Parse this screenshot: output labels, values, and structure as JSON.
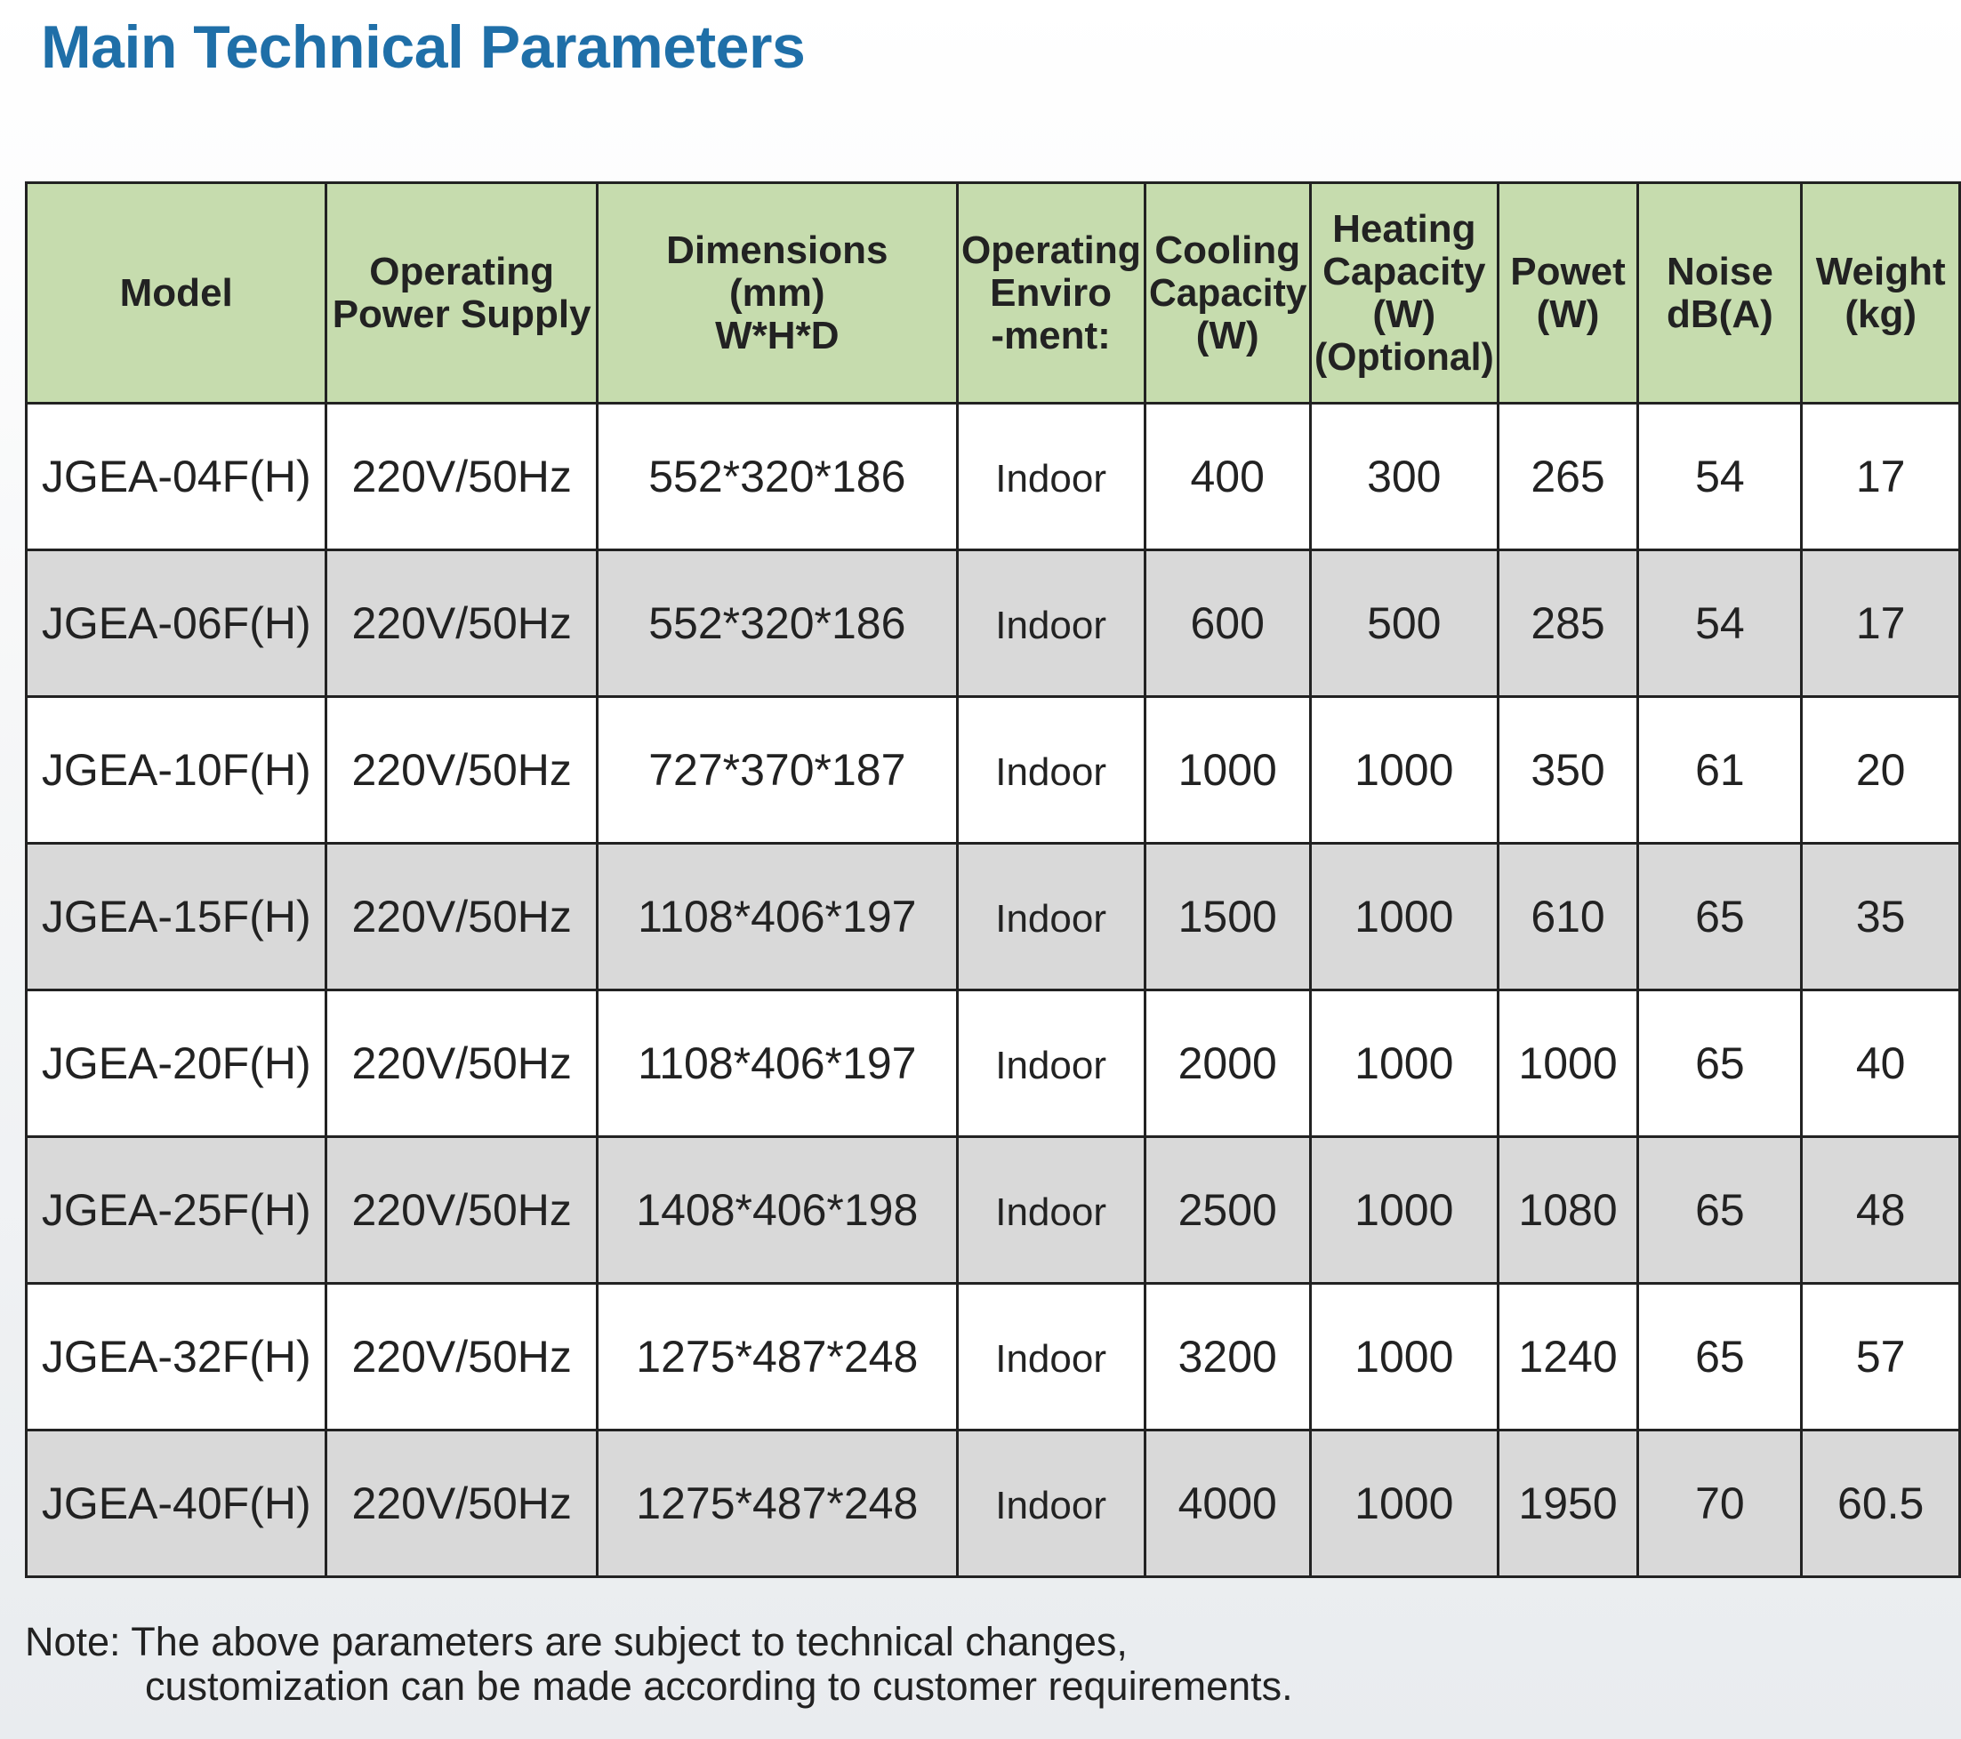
{
  "title": "Main Technical Parameters",
  "table": {
    "header": [
      [
        "Model"
      ],
      [
        "Operating",
        "Power Supply"
      ],
      [
        "Dimensions",
        "(mm)",
        "W*H*D"
      ],
      [
        "Operating",
        "Enviro",
        "-ment:"
      ],
      [
        "Cooling",
        "Capacity",
        "(W)"
      ],
      [
        "Heating",
        "Capacity",
        "(W)",
        "(Optional)"
      ],
      [
        "Powet",
        "(W)"
      ],
      [
        "Noise",
        "dB(A)"
      ],
      [
        "Weight",
        "(kg)"
      ]
    ],
    "rows": [
      [
        "JGEA-04F(H)",
        "220V/50Hz",
        "552*320*186",
        "Indoor",
        400,
        300,
        265,
        54,
        17
      ],
      [
        "JGEA-06F(H)",
        "220V/50Hz",
        "552*320*186",
        "Indoor",
        600,
        500,
        285,
        54,
        17
      ],
      [
        "JGEA-10F(H)",
        "220V/50Hz",
        "727*370*187",
        "Indoor",
        1000,
        1000,
        350,
        61,
        20
      ],
      [
        "JGEA-15F(H)",
        "220V/50Hz",
        "1108*406*197",
        "Indoor",
        1500,
        1000,
        610,
        65,
        35
      ],
      [
        "JGEA-20F(H)",
        "220V/50Hz",
        "1108*406*197",
        "Indoor",
        2000,
        1000,
        1000,
        65,
        40
      ],
      [
        "JGEA-25F(H)",
        "220V/50Hz",
        "1408*406*198",
        "Indoor",
        2500,
        1000,
        1080,
        65,
        48
      ],
      [
        "JGEA-32F(H)",
        "220V/50Hz",
        "1275*487*248",
        "Indoor",
        3200,
        1000,
        1240,
        65,
        57
      ],
      [
        "JGEA-40F(H)",
        "220V/50Hz",
        "1275*487*248",
        "Indoor",
        4000,
        1000,
        1950,
        70,
        60.5
      ]
    ]
  },
  "note": [
    "Note: The above parameters are subject to technical changes,",
    "customization can be made according to customer requirements."
  ]
}
